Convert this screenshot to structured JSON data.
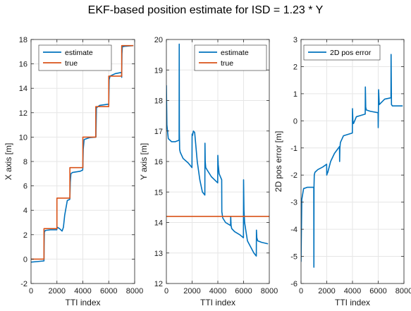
{
  "figure": {
    "title": "EKF-based position estimate for ISD = 1.23 * Y"
  },
  "colors": {
    "estimate": "#0072BD",
    "true": "#D95319",
    "grid": "#e6e6e6",
    "axis": "#262626"
  },
  "chart_data": [
    {
      "type": "line",
      "xlabel": "TTI index",
      "ylabel": "X axis [m]",
      "xlim": [
        0,
        8000
      ],
      "ylim": [
        -2,
        18
      ],
      "xticks": [
        0,
        2000,
        4000,
        6000,
        8000
      ],
      "yticks": [
        -2,
        0,
        2,
        4,
        6,
        8,
        10,
        12,
        14,
        16,
        18
      ],
      "grid": true,
      "legend": "top-left",
      "series": [
        {
          "name": "estimate",
          "color_key": "estimate",
          "x": [
            0,
            500,
            1000,
            1010,
            1030,
            1100,
            1500,
            1990,
            2000,
            2050,
            2200,
            2400,
            2500,
            2600,
            2800,
            2990,
            3000,
            3030,
            3080,
            3200,
            3500,
            3800,
            3990,
            4000,
            4030,
            4100,
            4500,
            5000,
            5010,
            5050,
            5300,
            5990,
            6000,
            6030,
            6100,
            6500,
            6990,
            7000,
            7020,
            7050,
            7300,
            7900
          ],
          "y": [
            -0.25,
            -0.2,
            -0.15,
            1.0,
            2.2,
            2.35,
            2.4,
            2.4,
            2.5,
            2.6,
            2.5,
            2.3,
            2.6,
            3.6,
            4.8,
            4.9,
            5.0,
            6.3,
            7.0,
            7.1,
            7.15,
            7.2,
            7.3,
            7.5,
            9.0,
            9.8,
            9.95,
            10.0,
            10.0,
            12.4,
            12.6,
            12.7,
            12.6,
            14.7,
            15.0,
            15.2,
            15.3,
            14.9,
            16.8,
            17.4,
            17.45,
            17.5
          ]
        },
        {
          "name": "true",
          "color_key": "true",
          "x": [
            0,
            1000,
            1000,
            2000,
            2000,
            3000,
            3000,
            4000,
            4000,
            5000,
            5000,
            6000,
            6000,
            7000,
            7000,
            7900
          ],
          "y": [
            0,
            0,
            2.5,
            2.5,
            5,
            5,
            7.5,
            7.5,
            10,
            10,
            12.5,
            12.5,
            15,
            15,
            17.5,
            17.5
          ]
        }
      ]
    },
    {
      "type": "line",
      "xlabel": "TTI index",
      "ylabel": "Y axis [m]",
      "xlim": [
        0,
        8000
      ],
      "ylim": [
        12,
        20
      ],
      "xticks": [
        0,
        2000,
        4000,
        6000,
        8000
      ],
      "yticks": [
        12,
        13,
        14,
        15,
        16,
        17,
        18,
        19,
        20
      ],
      "grid": true,
      "legend": "top-right",
      "series": [
        {
          "name": "estimate",
          "color_key": "estimate",
          "x": [
            0,
            40,
            150,
            400,
            700,
            990,
            1000,
            1010,
            1030,
            1080,
            1300,
            1700,
            1990,
            2000,
            2030,
            2100,
            2200,
            2400,
            2600,
            2800,
            2990,
            3000,
            3020,
            3060,
            3200,
            3500,
            3990,
            4000,
            4030,
            4100,
            4300,
            4310,
            4330,
            4380,
            4600,
            4990,
            5000,
            5030,
            5080,
            5300,
            5700,
            5990,
            6000,
            6030,
            6080,
            6300,
            6800,
            6990,
            7000,
            7030,
            7100,
            7400,
            7900
          ],
          "y": [
            18.5,
            17.2,
            16.75,
            16.65,
            16.65,
            16.7,
            19.85,
            17.0,
            16.4,
            16.3,
            16.1,
            15.95,
            15.8,
            16.9,
            16.85,
            17.0,
            16.95,
            16.0,
            15.4,
            15.0,
            14.9,
            16.6,
            16.0,
            15.8,
            15.7,
            15.5,
            15.3,
            16.2,
            15.9,
            15.6,
            15.4,
            14.35,
            14.3,
            14.15,
            14.0,
            13.9,
            14.2,
            13.9,
            13.8,
            13.7,
            13.6,
            13.5,
            15.4,
            14.4,
            14.0,
            13.4,
            13.0,
            12.9,
            13.75,
            13.5,
            13.4,
            13.35,
            13.3
          ]
        },
        {
          "name": "true",
          "color_key": "true",
          "x": [
            0,
            8000
          ],
          "y": [
            14.2,
            14.2
          ]
        }
      ]
    },
    {
      "type": "line",
      "xlabel": "TTI index",
      "ylabel": "2D pos error [m]",
      "xlim": [
        0,
        8000
      ],
      "ylim": [
        -6,
        3
      ],
      "xticks": [
        0,
        2000,
        4000,
        6000,
        8000
      ],
      "yticks": [
        -6,
        -5,
        -4,
        -3,
        -2,
        -1,
        0,
        1,
        2,
        3
      ],
      "grid": true,
      "legend": "top-left",
      "series": [
        {
          "name": "2D pos error",
          "color_key": "estimate",
          "x": [
            0,
            60,
            200,
            500,
            800,
            990,
            1000,
            1010,
            1030,
            1080,
            1300,
            1700,
            1990,
            2000,
            2030,
            2080,
            2300,
            2600,
            2990,
            3000,
            3020,
            3060,
            3300,
            3990,
            4000,
            4030,
            4080,
            4300,
            4990,
            5000,
            5030,
            5080,
            5400,
            5990,
            6000,
            6030,
            6080,
            6500,
            6990,
            7000,
            7030,
            7100,
            7500,
            7900
          ],
          "y": [
            -5.2,
            -2.9,
            -2.5,
            -2.45,
            -2.45,
            -2.45,
            -5.4,
            -2.4,
            -2.0,
            -1.9,
            -1.8,
            -1.7,
            -1.6,
            -2.0,
            -1.95,
            -1.9,
            -1.5,
            -1.2,
            -0.95,
            -1.5,
            -1.0,
            -0.8,
            -0.55,
            -0.45,
            0.45,
            0.0,
            -0.1,
            0.15,
            0.25,
            1.25,
            0.5,
            0.4,
            0.35,
            0.3,
            -0.25,
            1.15,
            0.6,
            0.8,
            0.85,
            2.45,
            0.6,
            0.55,
            0.55,
            0.55
          ]
        }
      ]
    }
  ]
}
